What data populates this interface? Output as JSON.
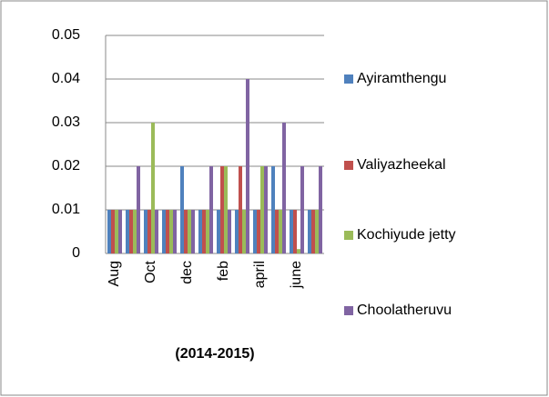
{
  "chart_data": {
    "type": "bar",
    "x_label": "(2014-2015)",
    "categories": [
      "Aug",
      null,
      "Oct",
      null,
      "dec",
      null,
      "feb",
      null,
      "april",
      null,
      "june",
      null
    ],
    "series": [
      {
        "name": "Ayiramthengu",
        "color": "#4f81bd",
        "values": [
          0.01,
          0.01,
          0.01,
          0.01,
          0.02,
          0.01,
          0.01,
          0.01,
          0.01,
          0.02,
          0.01,
          0.01
        ]
      },
      {
        "name": "Valiyazheekal",
        "color": "#c0504d",
        "values": [
          0.01,
          0.01,
          0.01,
          0.01,
          0.01,
          0.01,
          0.02,
          0.02,
          0.01,
          0.01,
          0.01,
          0.01
        ]
      },
      {
        "name": "Kochiyude jetty",
        "color": "#9bbb59",
        "values": [
          0.01,
          0.01,
          0.03,
          0.01,
          0.01,
          0.01,
          0.02,
          0.01,
          0.02,
          0.01,
          0.001,
          0.01
        ]
      },
      {
        "name": "Choolatheruvu",
        "color": "#8064a2",
        "values": [
          0.01,
          0.02,
          0.01,
          0.01,
          0.01,
          0.02,
          0.01,
          0.04,
          0.02,
          0.03,
          0.02,
          0.02
        ]
      }
    ],
    "ylim": [
      0,
      0.05
    ],
    "yticks": [
      0,
      0.01,
      0.02,
      0.03,
      0.04,
      0.05
    ],
    "grid": true,
    "legend": "right"
  }
}
